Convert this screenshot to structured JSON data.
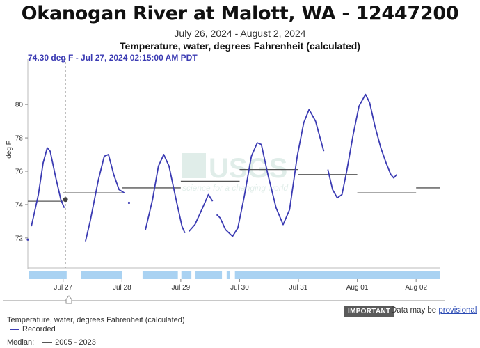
{
  "header": {
    "title": "Okanogan River at Malott, WA - 12447200",
    "date_range": "July 26, 2024 - August 2, 2024",
    "parameter": "Temperature, water, degrees Fahrenheit (calculated)",
    "tooltip": "74.30 deg F - Jul 27, 2024 02:15:00 AM PDT"
  },
  "notice": {
    "badge": "IMPORTANT",
    "text": "Data may be",
    "link": "provisional"
  },
  "legend": {
    "title": "Temperature, water, degrees Fahrenheit (calculated)",
    "recorded_label": "Recorded",
    "median_prefix": "Median:",
    "median_label": "2005 - 2023"
  },
  "watermark": {
    "logo": "USGS",
    "tagline": "science for a changing world"
  },
  "colors": {
    "series": "#3b3bb3",
    "median": "#555555",
    "approval_bar": "#a9d2f2",
    "cursor": "#999999"
  },
  "chart_data": {
    "type": "line",
    "ylabel": "deg F",
    "ylim": [
      70.2,
      82.3
    ],
    "y_ticks": [
      72,
      74,
      76,
      78,
      80
    ],
    "y_tick_labels": [
      "72",
      "74",
      "76",
      "78",
      "80"
    ],
    "xlim": [
      0,
      7
    ],
    "x_ticks": [
      0.6,
      1.6,
      2.6,
      3.6,
      4.6,
      5.6,
      6.6
    ],
    "x_tick_labels": [
      "Jul 27",
      "Jul 28",
      "Jul 29",
      "Jul 30",
      "Jul 31",
      "Aug 01",
      "Aug 02"
    ],
    "x_units": "days since Jul 26, 2024 00:00 PDT",
    "series": [
      {
        "name": "Recorded",
        "segments": [
          [
            [
              0.0,
              71.9
            ]
          ],
          [
            [
              0.06,
              72.7
            ],
            [
              0.18,
              74.6
            ],
            [
              0.26,
              76.5
            ],
            [
              0.33,
              77.4
            ],
            [
              0.38,
              77.2
            ],
            [
              0.47,
              75.7
            ],
            [
              0.56,
              74.3
            ],
            [
              0.62,
              73.8
            ]
          ],
          [
            [
              0.98,
              71.8
            ],
            [
              1.06,
              73.0
            ],
            [
              1.2,
              75.5
            ],
            [
              1.3,
              76.9
            ],
            [
              1.37,
              77.0
            ],
            [
              1.46,
              75.8
            ],
            [
              1.55,
              74.9
            ],
            [
              1.64,
              74.7
            ]
          ],
          [
            [
              1.72,
              74.1
            ]
          ],
          [
            [
              2.0,
              72.5
            ],
            [
              2.12,
              74.3
            ],
            [
              2.22,
              76.3
            ],
            [
              2.31,
              77.0
            ],
            [
              2.4,
              76.3
            ],
            [
              2.52,
              74.3
            ],
            [
              2.62,
              72.7
            ],
            [
              2.67,
              72.3
            ]
          ],
          [
            [
              2.74,
              72.4
            ],
            [
              2.84,
              72.8
            ],
            [
              2.97,
              73.8
            ],
            [
              3.07,
              74.6
            ],
            [
              3.14,
              74.2
            ]
          ],
          [
            [
              3.21,
              73.4
            ],
            [
              3.27,
              73.2
            ],
            [
              3.36,
              72.5
            ],
            [
              3.48,
              72.1
            ],
            [
              3.57,
              72.6
            ],
            [
              3.68,
              74.5
            ],
            [
              3.8,
              76.9
            ],
            [
              3.9,
              77.7
            ],
            [
              3.97,
              77.6
            ],
            [
              4.08,
              75.8
            ],
            [
              4.22,
              73.8
            ],
            [
              4.34,
              72.8
            ],
            [
              4.45,
              73.7
            ],
            [
              4.58,
              76.9
            ],
            [
              4.69,
              78.9
            ],
            [
              4.78,
              79.7
            ],
            [
              4.89,
              79.0
            ],
            [
              5.03,
              77.2
            ]
          ],
          [
            [
              5.1,
              76.1
            ],
            [
              5.18,
              74.9
            ],
            [
              5.26,
              74.4
            ],
            [
              5.34,
              74.6
            ],
            [
              5.42,
              76.0
            ],
            [
              5.53,
              78.2
            ],
            [
              5.63,
              79.9
            ],
            [
              5.74,
              80.6
            ],
            [
              5.81,
              80.1
            ],
            [
              5.9,
              78.7
            ],
            [
              6.0,
              77.4
            ],
            [
              6.09,
              76.5
            ],
            [
              6.17,
              75.8
            ],
            [
              6.22,
              75.6
            ],
            [
              6.27,
              75.8
            ]
          ]
        ]
      },
      {
        "name": "2005 - 2023",
        "steps": [
          [
            [
              0.0,
              74.2
            ],
            [
              0.6,
              74.2
            ]
          ],
          [
            [
              0.6,
              74.7
            ],
            [
              1.6,
              74.7
            ]
          ],
          [
            [
              1.6,
              75.0
            ],
            [
              2.6,
              75.0
            ]
          ],
          [
            [
              2.6,
              75.4
            ],
            [
              3.6,
              75.4
            ]
          ],
          [
            [
              3.6,
              76.1
            ],
            [
              4.6,
              76.1
            ]
          ],
          [
            [
              4.6,
              75.8
            ],
            [
              5.6,
              75.8
            ]
          ],
          [
            [
              5.6,
              74.7
            ],
            [
              6.6,
              74.7
            ]
          ],
          [
            [
              6.6,
              75.0
            ],
            [
              7.0,
              75.0
            ]
          ]
        ]
      }
    ],
    "approval_periods": [
      [
        0.02,
        0.66
      ],
      [
        0.9,
        1.6
      ],
      [
        1.95,
        2.55
      ],
      [
        2.61,
        2.78
      ],
      [
        2.85,
        3.3
      ],
      [
        3.38,
        3.44
      ],
      [
        3.52,
        7.0
      ]
    ],
    "cursor": {
      "x": 0.64,
      "y": 74.3
    }
  }
}
